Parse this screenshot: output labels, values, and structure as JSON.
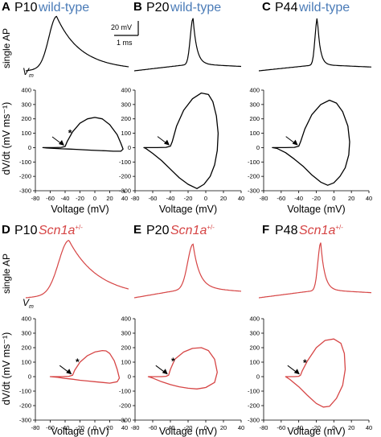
{
  "colors": {
    "wildtype": "#000000",
    "mutant": "#d64545",
    "wildtype_label": "#4a7bb7",
    "mutant_label": "#d64545"
  },
  "labels": {
    "single_ap": "single AP",
    "vm_main": "V",
    "vm_sub": "m",
    "star": "*",
    "scalebar_voltage": "20 mV",
    "scalebar_time": "1 ms"
  },
  "panels": [
    {
      "letter": "A",
      "age": "P10",
      "genotype": "wild-type",
      "genotype_sup": "",
      "trace": "wt",
      "star": true
    },
    {
      "letter": "B",
      "age": "P20",
      "genotype": "wild-type",
      "genotype_sup": "",
      "trace": "wt",
      "star": false
    },
    {
      "letter": "C",
      "age": "P44",
      "genotype": "wild-type",
      "genotype_sup": "",
      "trace": "wt",
      "star": false
    },
    {
      "letter": "D",
      "age": "P10",
      "genotype": "Scn1a",
      "genotype_sup": "+/-",
      "trace": "mut",
      "star": true
    },
    {
      "letter": "E",
      "age": "P20",
      "genotype": "Scn1a",
      "genotype_sup": "+/-",
      "trace": "mut",
      "star": true
    },
    {
      "letter": "F",
      "age": "P48",
      "genotype": "Scn1a",
      "genotype_sup": "+/-",
      "trace": "mut",
      "star": true
    }
  ],
  "chart_data": [
    {
      "type": "line",
      "panel": "A",
      "title": "",
      "xlabel": "Voltage (mV)",
      "ylabel": "dV/dt (mV ms⁻¹)",
      "xlim": [
        -80,
        40
      ],
      "ylim": [
        -300,
        400
      ],
      "xticks": [
        -80,
        -60,
        -40,
        -20,
        0,
        20,
        40
      ],
      "yticks": [
        -300,
        -200,
        -100,
        0,
        100,
        200,
        300,
        400
      ],
      "x": [
        -70,
        -55,
        -45,
        -40,
        -37,
        -30,
        -20,
        -10,
        0,
        10,
        20,
        30,
        35,
        38,
        35,
        25,
        15,
        5,
        -5,
        -15,
        -25,
        -35,
        -45,
        -55,
        -65,
        -70
      ],
      "y": [
        0,
        0,
        2,
        8,
        45,
        110,
        170,
        200,
        210,
        200,
        160,
        90,
        30,
        -10,
        -25,
        -25,
        -22,
        -20,
        -18,
        -15,
        -12,
        -10,
        -8,
        -5,
        -2,
        0
      ]
    },
    {
      "type": "line",
      "panel": "B",
      "title": "",
      "xlabel": "Voltage (mV)",
      "ylabel": "dV/dt (mV ms⁻¹)",
      "xlim": [
        -80,
        40
      ],
      "ylim": [
        -300,
        400
      ],
      "xticks": [
        -80,
        -60,
        -40,
        -20,
        0,
        20,
        40
      ],
      "yticks": [
        -300,
        -200,
        -100,
        0,
        100,
        200,
        300,
        400
      ],
      "x": [
        -70,
        -55,
        -45,
        -40,
        -38,
        -33,
        -25,
        -15,
        -5,
        3,
        8,
        12,
        14,
        13,
        10,
        5,
        -2,
        -10,
        -20,
        -30,
        -40,
        -50,
        -60,
        -68,
        -70
      ],
      "y": [
        0,
        0,
        2,
        10,
        40,
        150,
        260,
        340,
        380,
        370,
        320,
        220,
        100,
        -20,
        -120,
        -200,
        -255,
        -285,
        -255,
        -210,
        -150,
        -90,
        -40,
        -5,
        0
      ]
    },
    {
      "type": "line",
      "panel": "C",
      "title": "",
      "xlabel": "Voltage (mV)",
      "ylabel": "dV/dt (mV ms⁻¹)",
      "xlim": [
        -80,
        40
      ],
      "ylim": [
        -300,
        400
      ],
      "xticks": [
        -80,
        -60,
        -40,
        -20,
        0,
        20,
        40
      ],
      "yticks": [
        -300,
        -200,
        -100,
        0,
        100,
        200,
        300,
        400
      ],
      "x": [
        -70,
        -55,
        -45,
        -40,
        -38,
        -33,
        -25,
        -15,
        -5,
        3,
        10,
        16,
        18,
        17,
        13,
        7,
        0,
        -7,
        -15,
        -25,
        -35,
        -45,
        -55,
        -65,
        -70
      ],
      "y": [
        0,
        0,
        2,
        10,
        40,
        130,
        230,
        300,
        330,
        310,
        250,
        150,
        40,
        -50,
        -140,
        -200,
        -245,
        -262,
        -240,
        -190,
        -130,
        -80,
        -35,
        -5,
        0
      ]
    },
    {
      "type": "line",
      "panel": "D",
      "title": "",
      "xlabel": "Voltage (mV)",
      "ylabel": "dV/dt (mV ms⁻¹)",
      "xlim": [
        -80,
        40
      ],
      "ylim": [
        -300,
        400
      ],
      "xticks": [
        -80,
        -60,
        -40,
        -20,
        0,
        20,
        40
      ],
      "yticks": [
        -300,
        -200,
        -100,
        0,
        100,
        200,
        300,
        400
      ],
      "x": [
        -60,
        -45,
        -35,
        -30,
        -27,
        -20,
        -10,
        0,
        10,
        15,
        20,
        26,
        30,
        33,
        30,
        20,
        10,
        0,
        -10,
        -20,
        -30,
        -40,
        -50,
        -60
      ],
      "y": [
        0,
        0,
        2,
        10,
        45,
        100,
        145,
        170,
        180,
        178,
        160,
        110,
        50,
        -10,
        -35,
        -45,
        -40,
        -35,
        -30,
        -25,
        -18,
        -12,
        -5,
        0
      ]
    },
    {
      "type": "line",
      "panel": "E",
      "title": "",
      "xlabel": "Voltage (mV)",
      "ylabel": "dV/dt (mV ms⁻¹)",
      "xlim": [
        -80,
        40
      ],
      "ylim": [
        -300,
        400
      ],
      "xticks": [
        -80,
        -60,
        -40,
        -20,
        0,
        20,
        40
      ],
      "yticks": [
        -300,
        -200,
        -100,
        0,
        100,
        200,
        300,
        400
      ],
      "x": [
        -65,
        -50,
        -45,
        -42,
        -40,
        -35,
        -25,
        -15,
        -5,
        3,
        10,
        13,
        10,
        0,
        -10,
        -20,
        -30,
        -40,
        -50,
        -60,
        -65
      ],
      "y": [
        0,
        0,
        2,
        10,
        50,
        120,
        170,
        195,
        200,
        180,
        120,
        30,
        -40,
        -75,
        -85,
        -80,
        -70,
        -55,
        -35,
        -10,
        0
      ]
    },
    {
      "type": "line",
      "panel": "F",
      "title": "",
      "xlabel": "Voltage (mV)",
      "ylabel": "dV/dt (mV ms⁻¹)",
      "xlim": [
        -80,
        40
      ],
      "ylim": [
        -300,
        400
      ],
      "xticks": [
        -80,
        -60,
        -40,
        -20,
        0,
        20,
        40
      ],
      "yticks": [
        -300,
        -200,
        -100,
        0,
        100,
        200,
        300,
        400
      ],
      "x": [
        -55,
        -45,
        -40,
        -38,
        -36,
        -30,
        -20,
        -10,
        0,
        8,
        12,
        13,
        10,
        3,
        -5,
        -12,
        -20,
        -30,
        -40,
        -50,
        -55
      ],
      "y": [
        0,
        0,
        2,
        10,
        40,
        110,
        200,
        250,
        260,
        230,
        160,
        50,
        -60,
        -150,
        -205,
        -210,
        -185,
        -130,
        -70,
        -20,
        0
      ]
    }
  ]
}
